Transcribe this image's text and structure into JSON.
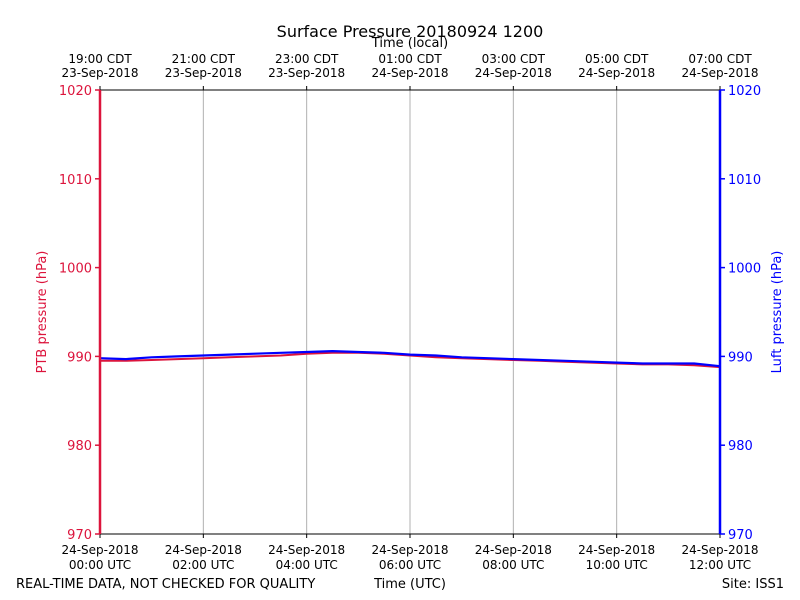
{
  "chart_data": {
    "type": "line",
    "title": "Surface Pressure 20180924 1200",
    "top_axis_label": "Time (local)",
    "xlabel": "Time (UTC)",
    "ylabel_left": "PTB pressure (hPa)",
    "ylabel_right": "Luft pressure (hPa)",
    "footer_left": "REAL-TIME DATA, NOT CHECKED FOR QUALITY",
    "footer_right": "Site: ISS1",
    "ylim": [
      970,
      1020
    ],
    "xlim_hours_utc": [
      0,
      12
    ],
    "y_ticks": [
      970,
      980,
      990,
      1000,
      1010,
      1020
    ],
    "x_ticks_utc": [
      {
        "hour": 0,
        "date": "24-Sep-2018",
        "time": "00:00 UTC"
      },
      {
        "hour": 2,
        "date": "24-Sep-2018",
        "time": "02:00 UTC"
      },
      {
        "hour": 4,
        "date": "24-Sep-2018",
        "time": "04:00 UTC"
      },
      {
        "hour": 6,
        "date": "24-Sep-2018",
        "time": "06:00 UTC"
      },
      {
        "hour": 8,
        "date": "24-Sep-2018",
        "time": "08:00 UTC"
      },
      {
        "hour": 10,
        "date": "24-Sep-2018",
        "time": "10:00 UTC"
      },
      {
        "hour": 12,
        "date": "24-Sep-2018",
        "time": "12:00 UTC"
      }
    ],
    "x_ticks_local": [
      {
        "hour": 0,
        "time": "19:00 CDT",
        "date": "23-Sep-2018"
      },
      {
        "hour": 2,
        "time": "21:00 CDT",
        "date": "23-Sep-2018"
      },
      {
        "hour": 4,
        "time": "23:00 CDT",
        "date": "23-Sep-2018"
      },
      {
        "hour": 6,
        "time": "01:00 CDT",
        "date": "24-Sep-2018"
      },
      {
        "hour": 8,
        "time": "03:00 CDT",
        "date": "24-Sep-2018"
      },
      {
        "hour": 10,
        "time": "05:00 CDT",
        "date": "24-Sep-2018"
      },
      {
        "hour": 12,
        "time": "07:00 CDT",
        "date": "24-Sep-2018"
      }
    ],
    "grid": "vertical",
    "colors": {
      "ptb": "#dc143c",
      "luft": "#0000ff",
      "grid": "#b0b0b0"
    },
    "series": [
      {
        "key": "ptb",
        "x_hours_utc": [
          0,
          0.5,
          1,
          1.5,
          2,
          2.5,
          3,
          3.5,
          4,
          4.5,
          5,
          5.5,
          6,
          6.5,
          7,
          7.5,
          8,
          8.5,
          9,
          9.5,
          10,
          10.5,
          11,
          11.5,
          12
        ],
        "values": [
          989.5,
          989.5,
          989.6,
          989.7,
          989.8,
          989.9,
          990.0,
          990.1,
          990.3,
          990.4,
          990.4,
          990.3,
          990.1,
          989.9,
          989.8,
          989.7,
          989.6,
          989.5,
          989.4,
          989.3,
          989.2,
          989.1,
          989.1,
          989.0,
          988.8
        ]
      },
      {
        "key": "luft",
        "x_hours_utc": [
          0,
          0.5,
          1,
          1.5,
          2,
          2.5,
          3,
          3.5,
          4,
          4.5,
          5,
          5.5,
          6,
          6.5,
          7,
          7.5,
          8,
          8.5,
          9,
          9.5,
          10,
          10.5,
          11,
          11.5,
          12
        ],
        "values": [
          989.8,
          989.7,
          989.9,
          990.0,
          990.1,
          990.2,
          990.3,
          990.4,
          990.5,
          990.6,
          990.5,
          990.4,
          990.2,
          990.1,
          989.9,
          989.8,
          989.7,
          989.6,
          989.5,
          989.4,
          989.3,
          989.2,
          989.2,
          989.2,
          988.9
        ]
      }
    ]
  }
}
